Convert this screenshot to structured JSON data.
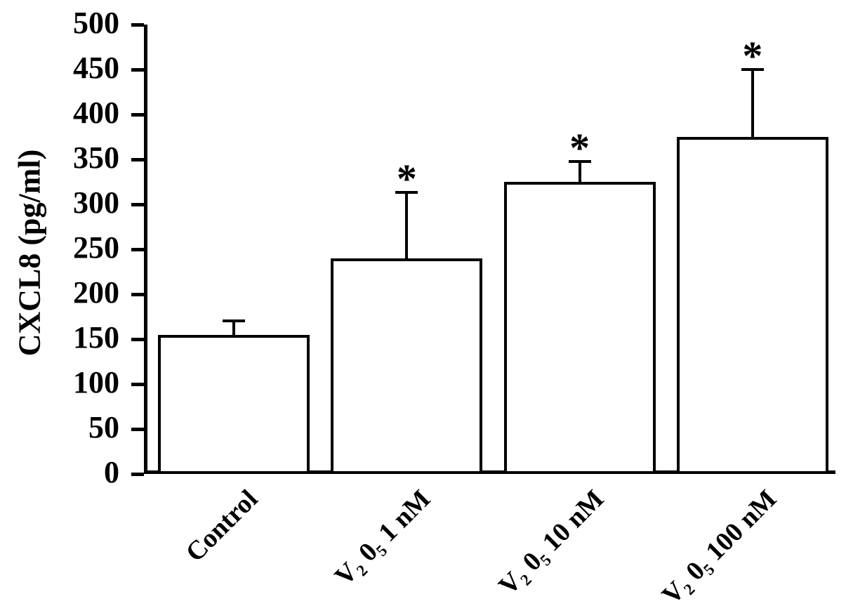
{
  "chart_data": {
    "type": "bar",
    "title": "",
    "xlabel": "",
    "ylabel": "CXCL8 (pg/ml)",
    "ylim": [
      0,
      500
    ],
    "ytick_step": 50,
    "yticks": [
      0,
      50,
      100,
      150,
      200,
      250,
      300,
      350,
      400,
      450,
      500
    ],
    "categories": [
      "Control",
      "V₂ 0₅ 1 nM",
      "V₂ 0₅ 10 nM",
      "V₂ 0₅ 100 nM"
    ],
    "values": [
      155,
      240,
      325,
      375
    ],
    "errors_upper": [
      15,
      73,
      23,
      75
    ],
    "significance": [
      "",
      "*",
      "*",
      "*"
    ],
    "bar_fill": "#ffffff",
    "bar_border": "#000000",
    "grid": false,
    "legend": false
  }
}
